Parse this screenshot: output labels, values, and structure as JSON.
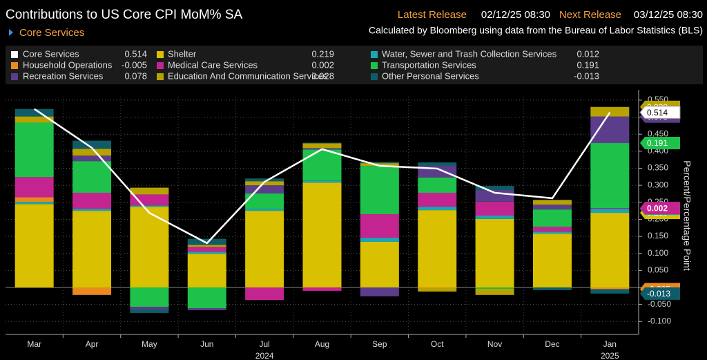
{
  "chart_data": {
    "type": "bar",
    "stacked": true,
    "title": "Contributions to US Core CPI MoM% SA",
    "security": "Core Services",
    "latest_release_label": "Latest Release",
    "latest_release": "02/12/25 08:30",
    "next_release_label": "Next Release",
    "next_release": "03/12/25 08:30",
    "subtitle": "Calculated by Bloomberg using data from the Bureau of Labor Statistics (BLS)",
    "y_axis_label": "Percent/Percentage Point",
    "categories": [
      "Mar",
      "Apr",
      "May",
      "Jun",
      "Jul",
      "Aug",
      "Sep",
      "Oct",
      "Nov",
      "Dec",
      "Jan"
    ],
    "category_years": [
      null,
      null,
      null,
      null,
      "2024",
      null,
      null,
      null,
      null,
      null,
      "2025"
    ],
    "ylim": [
      -0.138,
      0.56
    ],
    "yticks": [
      {
        "value": -0.1,
        "label": "-0.100"
      },
      {
        "value": -0.05,
        "label": "-0.050"
      },
      {
        "value": 0,
        "label": "0.000"
      },
      {
        "value": 0.05,
        "label": "0.050"
      },
      {
        "value": 0.1,
        "label": "0.100"
      },
      {
        "value": 0.15,
        "label": "0.150"
      },
      {
        "value": 0.2,
        "label": "0.200"
      },
      {
        "value": 0.25,
        "label": "0.250"
      },
      {
        "value": 0.3,
        "label": "0.300"
      },
      {
        "value": 0.35,
        "label": "0.350"
      },
      {
        "value": 0.4,
        "label": "0.400"
      },
      {
        "value": 0.45,
        "label": "0.450"
      },
      {
        "value": 0.5,
        "label": "0.500"
      },
      {
        "value": 0.55,
        "label": "0.550"
      }
    ],
    "grid": true,
    "series": [
      {
        "name": "Core Services",
        "type": "line",
        "color": "#ffffff",
        "values": [
          0.524,
          0.41,
          0.219,
          0.13,
          0.31,
          0.406,
          0.357,
          0.349,
          0.278,
          0.262,
          0.514
        ]
      },
      {
        "name": "Shelter",
        "color": "#d9c000",
        "values": [
          0.245,
          0.225,
          0.237,
          0.099,
          0.225,
          0.308,
          0.134,
          0.227,
          0.201,
          0.158,
          0.219
        ]
      },
      {
        "name": "Water, Sewer and Trash Collection Services",
        "color": "#1aa6b4",
        "values": [
          0.006,
          0.006,
          0.004,
          0.006,
          0.006,
          0.006,
          0.012,
          0.01,
          0.01,
          0.006,
          0.012
        ]
      },
      {
        "name": "Household Operations",
        "color": "#ea8a1e",
        "values": [
          0.014,
          -0.022,
          0,
          0,
          0,
          0,
          0,
          -0.002,
          0,
          0,
          -0.005
        ]
      },
      {
        "name": "Medical Care Services",
        "color": "#c4248f",
        "values": [
          0.059,
          0.047,
          0.032,
          0.014,
          -0.037,
          -0.01,
          0.069,
          0.041,
          0.041,
          0.014,
          0.002
        ]
      },
      {
        "name": "Transportation Services",
        "color": "#1ec24a",
        "values": [
          0.16,
          0.093,
          -0.057,
          -0.061,
          0.045,
          0.091,
          0.142,
          0.045,
          -0.004,
          0.051,
          0.191
        ]
      },
      {
        "name": "Recreation Services",
        "color": "#5c3d8c",
        "values": [
          0,
          0.016,
          -0.008,
          -0.006,
          0.024,
          0.004,
          -0.026,
          0.034,
          0.034,
          0.014,
          0.078
        ]
      },
      {
        "name": "Education And Communication Services",
        "color": "#b8a200",
        "values": [
          0.018,
          0.02,
          0.02,
          0.006,
          0.012,
          0.014,
          0.008,
          -0.01,
          -0.018,
          0.014,
          0.028
        ]
      },
      {
        "name": "Other Personal Services",
        "color": "#0f5c68",
        "values": [
          0.022,
          0.024,
          -0.01,
          0.018,
          0.008,
          0.002,
          0.004,
          0.01,
          0.012,
          -0.008,
          -0.013
        ]
      }
    ]
  }
}
